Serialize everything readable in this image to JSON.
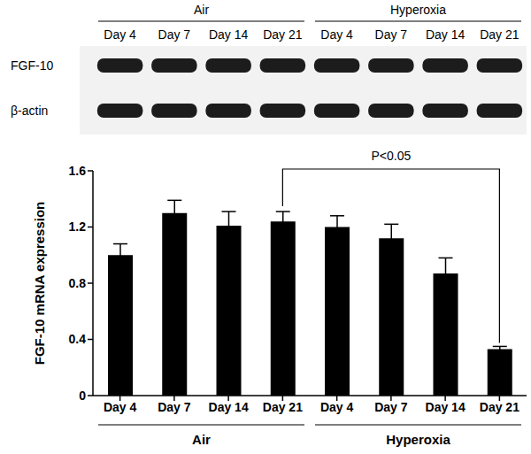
{
  "blot": {
    "groups": [
      "Air",
      "Hyperoxia"
    ],
    "lanes": [
      "Day 4",
      "Day 7",
      "Day 14",
      "Day 21",
      "Day 4",
      "Day 7",
      "Day 14",
      "Day 21"
    ],
    "rows": [
      "FGF-10",
      "β-actin"
    ]
  },
  "chart_data": {
    "type": "bar",
    "y_label": "FGF-10 mRNA expression",
    "categories": [
      "Day 4",
      "Day 7",
      "Day 14",
      "Day 21",
      "Day 4",
      "Day 7",
      "Day 14",
      "Day 21"
    ],
    "group_labels": [
      "Air",
      "Hyperoxia"
    ],
    "values": [
      1.0,
      1.3,
      1.21,
      1.24,
      1.2,
      1.12,
      0.87,
      0.33
    ],
    "errors": [
      0.08,
      0.09,
      0.1,
      0.07,
      0.08,
      0.1,
      0.11,
      0.02
    ],
    "color": "#000000",
    "ylim": [
      0,
      1.6
    ],
    "yticks": [
      0,
      0.4,
      0.8,
      1.2,
      1.6
    ],
    "grid": false,
    "annotations": [
      {
        "text": "P<0.05",
        "between": [
          3,
          7
        ]
      }
    ]
  }
}
